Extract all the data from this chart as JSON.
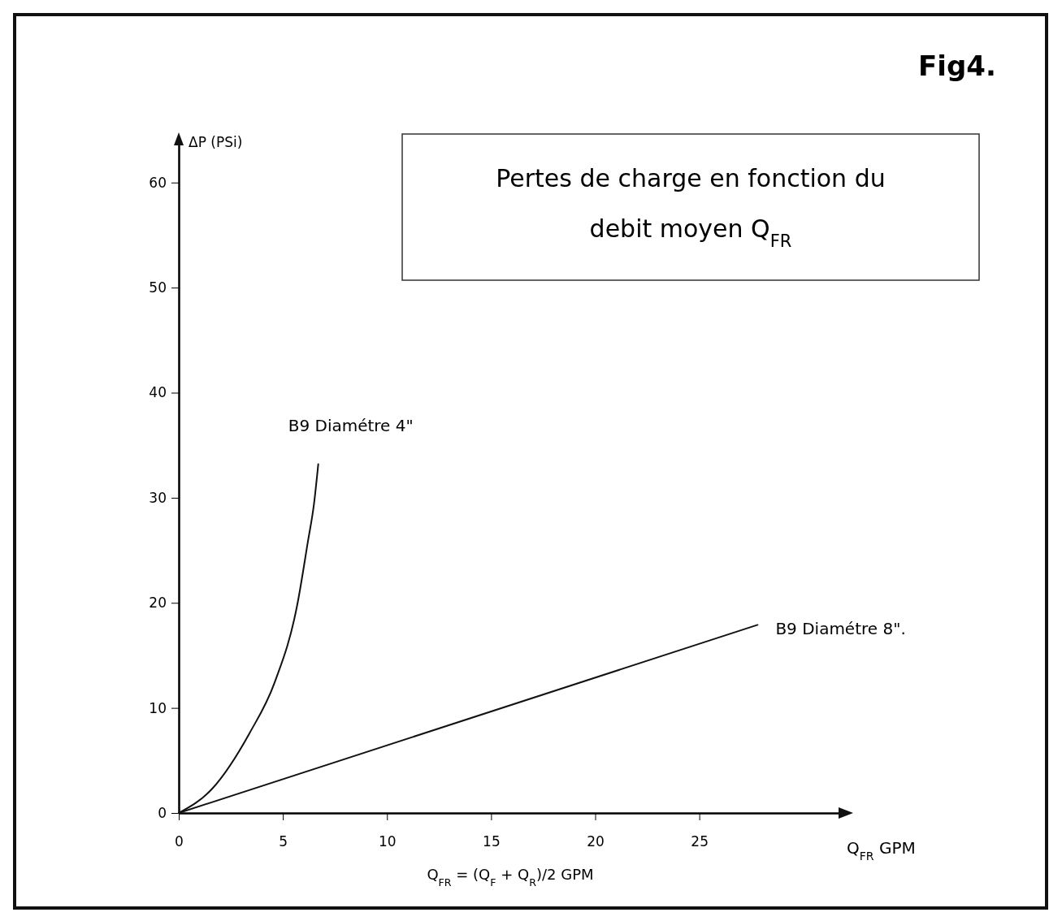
{
  "chart_data": {
    "type": "line",
    "title": "Pertes de charge en fonction du debit moyen Q$_{FR}$",
    "xlabel": "Q$_{FR}$ GPM",
    "ylabel": "ΔP (PSi)",
    "annotations": [
      "Fig4.",
      "Q$_{FR}$ = (Q$_{F}$ + Q$_{R}$)/2 GPM"
    ],
    "xlim": [
      0,
      32
    ],
    "ylim": [
      0,
      64
    ],
    "xticks": [
      0,
      5,
      10,
      15,
      20,
      25
    ],
    "yticks": [
      0,
      10,
      20,
      30,
      40,
      50,
      60
    ],
    "grid": false,
    "marker": "none",
    "line_style": "solid",
    "series": [
      {
        "name": "B9 Diamétre 4\"",
        "color": "#111111",
        "x": [
          0,
          1.6,
          3.4,
          4.6,
          5.7,
          6.2,
          6.5,
          6.7
        ],
        "values": [
          0,
          2.3,
          7.6,
          12.4,
          19.9,
          25.8,
          29.5,
          33.2
        ]
      },
      {
        "name": "B9 Diamétre 8\".",
        "color": "#111111",
        "x": [
          0,
          27.8
        ],
        "values": [
          0,
          17.9
        ]
      }
    ]
  }
}
